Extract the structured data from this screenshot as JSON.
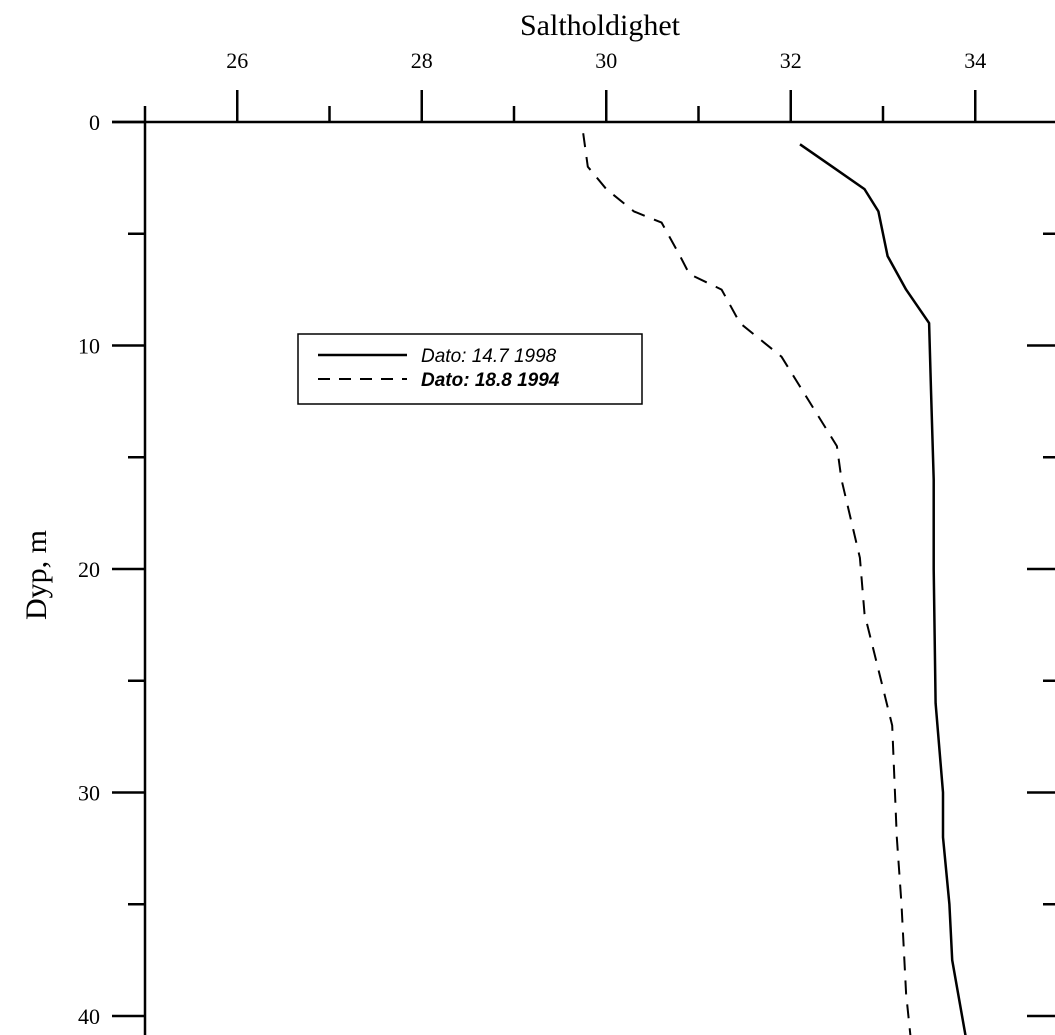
{
  "chart_data": {
    "type": "line",
    "title": "Saltholdighet",
    "ylabel": "Dyp, m",
    "xlabel": "",
    "x_axis_position": "top",
    "y_axis_inverted": true,
    "xlim": [
      25,
      35.3
    ],
    "ylim": [
      0,
      41
    ],
    "x_ticks": [
      26,
      28,
      30,
      32,
      34
    ],
    "x_minor_ticks": [
      25,
      27,
      29,
      31,
      33,
      35
    ],
    "y_ticks": [
      0,
      10,
      20,
      30,
      40
    ],
    "y_minor_ticks": [
      5,
      15,
      25,
      35
    ],
    "x_tick_labels": [
      "26",
      "28",
      "30",
      "32",
      "34"
    ],
    "y_tick_labels": [
      "0",
      "10",
      "20",
      "30",
      "40"
    ],
    "grid": false,
    "legend_position": "upper-left",
    "series": [
      {
        "name": "Dato: 14.7 1998",
        "line_style": "solid",
        "color": "#000000",
        "points": [
          [
            32.1,
            1.0
          ],
          [
            32.45,
            2.0
          ],
          [
            32.8,
            3.0
          ],
          [
            32.95,
            4.0
          ],
          [
            33.05,
            6.0
          ],
          [
            33.25,
            7.5
          ],
          [
            33.5,
            9.0
          ],
          [
            33.52,
            12.0
          ],
          [
            33.55,
            16.0
          ],
          [
            33.55,
            20.0
          ],
          [
            33.57,
            26.0
          ],
          [
            33.65,
            30.0
          ],
          [
            33.65,
            32.0
          ],
          [
            33.72,
            35.0
          ],
          [
            33.75,
            37.5
          ],
          [
            33.9,
            41.0
          ]
        ]
      },
      {
        "name": "Dato: 18.8 1994",
        "line_style": "dashed",
        "color": "#000000",
        "points": [
          [
            29.75,
            0.5
          ],
          [
            29.8,
            2.0
          ],
          [
            30.0,
            3.0
          ],
          [
            30.3,
            4.0
          ],
          [
            30.6,
            4.5
          ],
          [
            30.8,
            6.0
          ],
          [
            30.9,
            6.8
          ],
          [
            31.25,
            7.5
          ],
          [
            31.45,
            9.0
          ],
          [
            31.9,
            10.5
          ],
          [
            32.2,
            12.5
          ],
          [
            32.5,
            14.5
          ],
          [
            32.55,
            16.0
          ],
          [
            32.75,
            19.5
          ],
          [
            32.8,
            22.0
          ],
          [
            32.95,
            24.5
          ],
          [
            33.1,
            27.0
          ],
          [
            33.15,
            32.0
          ],
          [
            33.2,
            35.0
          ],
          [
            33.25,
            39.0
          ],
          [
            33.3,
            41.0
          ]
        ]
      }
    ]
  }
}
